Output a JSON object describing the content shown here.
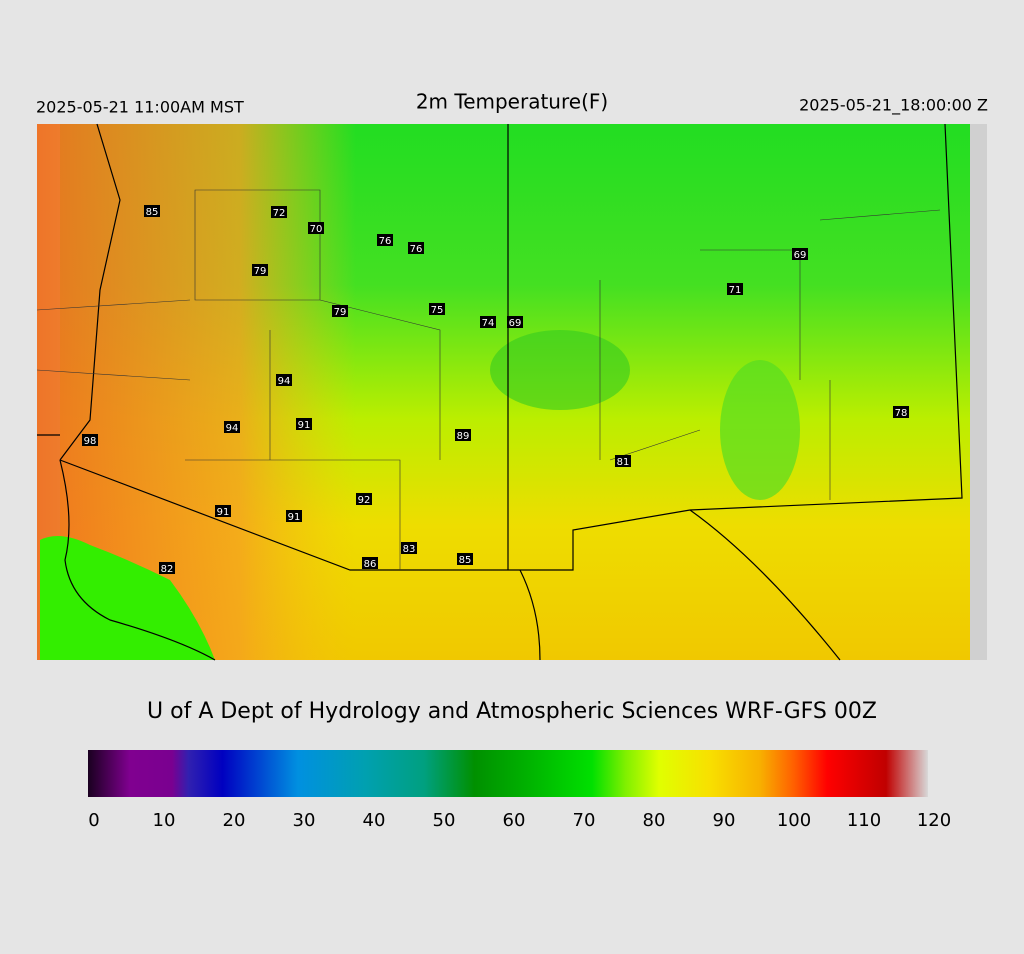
{
  "header": {
    "left": "2025-05-21 11:00AM MST",
    "title": "2m Temperature(F)",
    "right": "2025-05-21_18:00:00 Z"
  },
  "map": {
    "stations": [
      85,
      72,
      70,
      76,
      76,
      79,
      79,
      75,
      74,
      69,
      71,
      69,
      94,
      94,
      91,
      89,
      98,
      81,
      78,
      92,
      91,
      91,
      82,
      83,
      86,
      85
    ]
  },
  "footer": {
    "credit": "U of A Dept of Hydrology and Atmospheric Sciences WRF-GFS 00Z"
  },
  "colorbar": {
    "lim": [
      0,
      120
    ],
    "ticks": [
      0,
      10,
      20,
      30,
      40,
      50,
      60,
      70,
      80,
      90,
      100,
      110,
      120
    ]
  }
}
